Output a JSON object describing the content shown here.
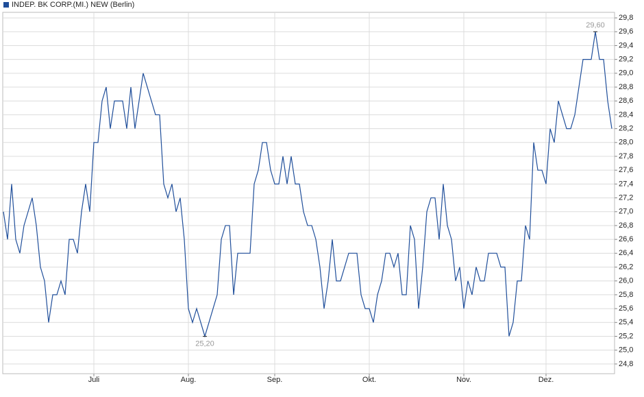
{
  "chart_data": {
    "type": "line",
    "categories": [
      null,
      null,
      null,
      null,
      null,
      null,
      null,
      null,
      null,
      null,
      null,
      null,
      null,
      null,
      null,
      null,
      null,
      null,
      null,
      null,
      null,
      null,
      "Juli",
      null,
      null,
      null,
      null,
      null,
      null,
      null,
      null,
      null,
      null,
      null,
      null,
      null,
      null,
      null,
      null,
      null,
      null,
      null,
      null,
      null,
      null,
      "Aug.",
      null,
      null,
      null,
      null,
      null,
      null,
      null,
      null,
      null,
      null,
      null,
      null,
      null,
      null,
      null,
      null,
      null,
      null,
      null,
      null,
      "Sep.",
      null,
      null,
      null,
      null,
      null,
      null,
      null,
      null,
      null,
      null,
      null,
      null,
      null,
      null,
      null,
      null,
      null,
      null,
      null,
      null,
      null,
      null,
      "Okt.",
      null,
      null,
      null,
      null,
      null,
      null,
      null,
      null,
      null,
      null,
      null,
      null,
      null,
      null,
      null,
      null,
      null,
      null,
      null,
      null,
      null,
      null,
      "Nov.",
      null,
      null,
      null,
      null,
      null,
      null,
      null,
      null,
      null,
      null,
      null,
      null,
      null,
      null,
      null,
      null,
      null,
      null,
      null,
      "Dez.",
      null,
      null,
      null,
      null,
      null,
      null,
      null,
      null,
      null,
      null,
      null,
      null,
      null,
      null,
      null,
      null
    ],
    "series": [
      {
        "name": "INDEP. BK CORP.(MI.) NEW (Berlin)",
        "color": "#1f4e9a",
        "values": [
          27.0,
          26.6,
          27.4,
          26.6,
          26.4,
          26.8,
          27.0,
          27.2,
          26.8,
          26.2,
          26.0,
          25.4,
          25.8,
          25.8,
          26.0,
          25.8,
          26.6,
          26.6,
          26.4,
          27.0,
          27.4,
          27.0,
          28.0,
          28.0,
          28.6,
          28.8,
          28.2,
          28.6,
          28.6,
          28.6,
          28.2,
          28.8,
          28.2,
          28.6,
          29.0,
          28.8,
          28.6,
          28.4,
          28.4,
          27.4,
          27.2,
          27.4,
          27.0,
          27.2,
          26.6,
          25.6,
          25.4,
          25.6,
          25.4,
          25.2,
          25.4,
          25.6,
          25.8,
          26.6,
          26.8,
          26.8,
          25.8,
          26.4,
          26.4,
          26.4,
          26.4,
          27.4,
          27.6,
          28.0,
          28.0,
          27.6,
          27.4,
          27.4,
          27.8,
          27.4,
          27.8,
          27.4,
          27.4,
          27.0,
          26.8,
          26.8,
          26.6,
          26.2,
          25.6,
          26.0,
          26.6,
          26.0,
          26.0,
          26.2,
          26.4,
          26.4,
          26.4,
          25.8,
          25.6,
          25.6,
          25.4,
          25.8,
          26.0,
          26.4,
          26.4,
          26.2,
          26.4,
          25.8,
          25.8,
          26.8,
          26.6,
          25.6,
          26.2,
          27.0,
          27.2,
          27.2,
          26.6,
          27.4,
          26.8,
          26.6,
          26.0,
          26.2,
          25.6,
          26.0,
          25.8,
          26.2,
          26.0,
          26.0,
          26.4,
          26.4,
          26.4,
          26.2,
          26.2,
          25.2,
          25.4,
          26.0,
          26.0,
          26.8,
          26.6,
          28.0,
          27.6,
          27.6,
          27.4,
          28.2,
          28.0,
          28.6,
          28.4,
          28.2,
          28.2,
          28.4,
          28.8,
          29.2,
          29.2,
          29.2,
          29.6,
          29.2,
          29.2,
          28.6,
          28.2
        ],
        "value_labels": [
          null,
          null,
          null,
          null,
          null,
          null,
          null,
          null,
          null,
          null,
          null,
          null,
          null,
          null,
          null,
          null,
          null,
          null,
          null,
          null,
          null,
          null,
          null,
          null,
          null,
          null,
          null,
          null,
          null,
          null,
          null,
          null,
          null,
          null,
          null,
          null,
          null,
          null,
          null,
          null,
          null,
          null,
          null,
          null,
          null,
          null,
          null,
          null,
          null,
          "25,20",
          null,
          null,
          null,
          null,
          null,
          null,
          null,
          null,
          null,
          null,
          null,
          null,
          null,
          null,
          null,
          null,
          null,
          null,
          null,
          null,
          null,
          null,
          null,
          null,
          null,
          null,
          null,
          null,
          null,
          null,
          null,
          null,
          null,
          null,
          null,
          null,
          null,
          null,
          null,
          null,
          null,
          null,
          null,
          null,
          null,
          null,
          null,
          null,
          null,
          null,
          null,
          null,
          null,
          null,
          null,
          null,
          null,
          null,
          null,
          null,
          null,
          null,
          null,
          null,
          null,
          null,
          null,
          null,
          null,
          null,
          null,
          null,
          null,
          null,
          null,
          null,
          null,
          null,
          null,
          null,
          null,
          null,
          null,
          null,
          null,
          null,
          null,
          null,
          null,
          null,
          null,
          null,
          null,
          null,
          "29,60",
          null,
          null,
          null,
          null
        ]
      }
    ],
    "ylim": [
      24.66,
      29.88
    ],
    "yticks": [
      {
        "value": 24.8,
        "label": "24,8"
      },
      {
        "value": 25.0,
        "label": "25,0"
      },
      {
        "value": 25.2,
        "label": "25,2"
      },
      {
        "value": 25.4,
        "label": "25,4"
      },
      {
        "value": 25.6,
        "label": "25,6"
      },
      {
        "value": 25.8,
        "label": "25,8"
      },
      {
        "value": 26.0,
        "label": "26,0"
      },
      {
        "value": 26.2,
        "label": "26,2"
      },
      {
        "value": 26.4,
        "label": "26,4"
      },
      {
        "value": 26.6,
        "label": "26,6"
      },
      {
        "value": 26.8,
        "label": "26,8"
      },
      {
        "value": 27.0,
        "label": "27,0"
      },
      {
        "value": 27.2,
        "label": "27,2"
      },
      {
        "value": 27.4,
        "label": "27,4"
      },
      {
        "value": 27.6,
        "label": "27,6"
      },
      {
        "value": 27.8,
        "label": "27,8"
      },
      {
        "value": 28.0,
        "label": "28,0"
      },
      {
        "value": 28.2,
        "label": "28,2"
      },
      {
        "value": 28.4,
        "label": "28,4"
      },
      {
        "value": 28.6,
        "label": "28,6"
      },
      {
        "value": 28.8,
        "label": "28,8"
      },
      {
        "value": 29.0,
        "label": "29,0"
      },
      {
        "value": 29.2,
        "label": "29,2"
      },
      {
        "value": 29.4,
        "label": "29,4"
      },
      {
        "value": 29.6,
        "label": "29,6"
      },
      {
        "value": 29.8,
        "label": "29,8"
      }
    ],
    "grid": true
  }
}
